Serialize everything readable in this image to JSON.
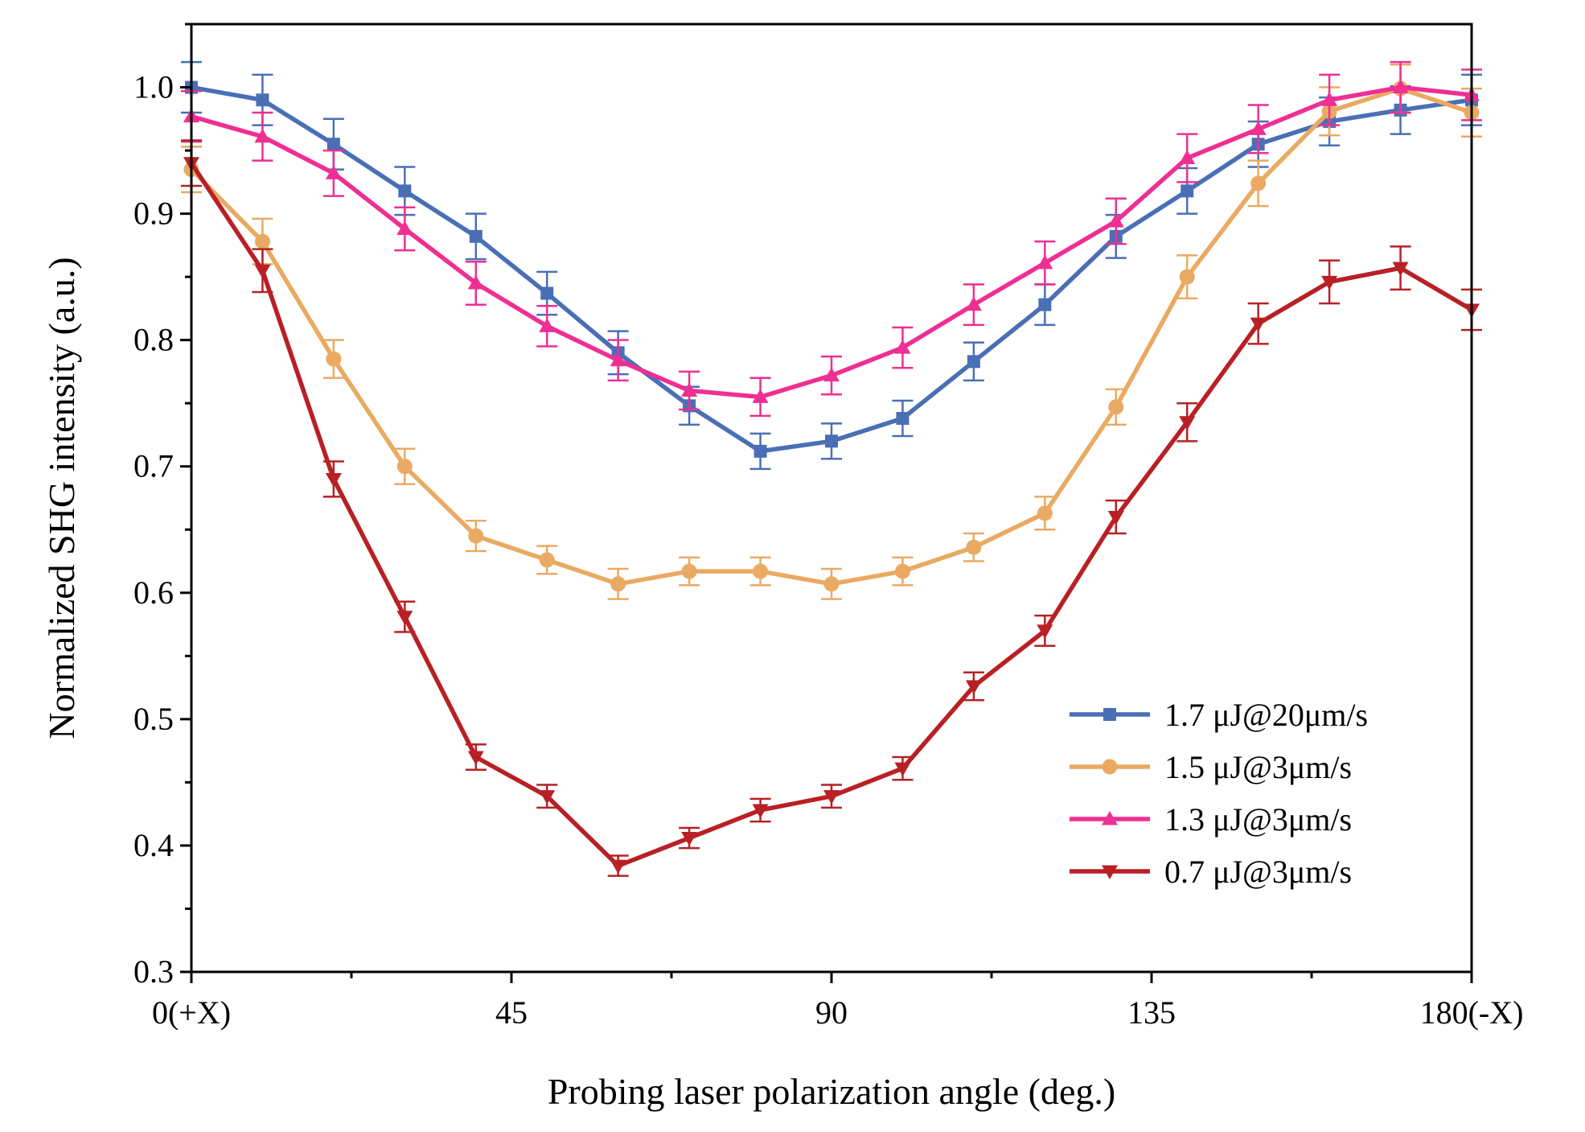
{
  "chart_data": {
    "type": "line",
    "title": "",
    "xlabel": "Probing laser polarization angle (deg.)",
    "ylabel": "Normalized SHG intensity (a.u.)",
    "xlim": [
      0,
      180
    ],
    "ylim": [
      0.3,
      1.05
    ],
    "x_ticks": [
      0,
      45,
      90,
      135,
      180
    ],
    "x_tick_labels": [
      "0(+X)",
      "45",
      "90",
      "135",
      "180(-X)"
    ],
    "y_ticks": [
      0.3,
      0.4,
      0.5,
      0.6,
      0.7,
      0.8,
      0.9,
      1.0
    ],
    "y_tick_labels": [
      "0.3",
      "0.4",
      "0.5",
      "0.6",
      "0.7",
      "0.8",
      "0.9",
      "1.0"
    ],
    "grid": false,
    "legend_position": "lower-right",
    "x": [
      0,
      10,
      20,
      30,
      40,
      50,
      60,
      70,
      80,
      90,
      100,
      110,
      120,
      130,
      140,
      150,
      160,
      170,
      180
    ],
    "series": [
      {
        "name": "1.7 μJ@20μm/s",
        "color": "#4a6fb5",
        "marker": "square",
        "values": [
          1.0,
          0.99,
          0.955,
          0.918,
          0.882,
          0.837,
          0.79,
          0.748,
          0.712,
          0.72,
          0.738,
          0.783,
          0.828,
          0.882,
          0.918,
          0.955,
          0.973,
          0.982,
          0.99
        ],
        "errors": [
          0.02,
          0.02,
          0.02,
          0.019,
          0.018,
          0.017,
          0.017,
          0.015,
          0.014,
          0.014,
          0.014,
          0.015,
          0.016,
          0.017,
          0.018,
          0.018,
          0.019,
          0.019,
          0.02
        ]
      },
      {
        "name": "1.5 μJ@3μm/s",
        "color": "#eaaa63",
        "marker": "circle",
        "values": [
          0.935,
          0.878,
          0.785,
          0.7,
          0.645,
          0.626,
          0.607,
          0.617,
          0.617,
          0.607,
          0.617,
          0.636,
          0.663,
          0.747,
          0.85,
          0.924,
          0.981,
          0.999,
          0.98
        ],
        "errors": [
          0.018,
          0.018,
          0.015,
          0.014,
          0.012,
          0.011,
          0.012,
          0.011,
          0.011,
          0.012,
          0.011,
          0.011,
          0.013,
          0.014,
          0.017,
          0.018,
          0.019,
          0.019,
          0.019
        ]
      },
      {
        "name": "1.3 μJ@3μm/s",
        "color": "#ee2f93",
        "marker": "triangle-up",
        "values": [
          0.977,
          0.961,
          0.932,
          0.888,
          0.845,
          0.811,
          0.784,
          0.76,
          0.755,
          0.772,
          0.794,
          0.828,
          0.861,
          0.894,
          0.944,
          0.967,
          0.99,
          1.0,
          0.994
        ],
        "errors": [
          0.02,
          0.019,
          0.018,
          0.017,
          0.017,
          0.016,
          0.016,
          0.015,
          0.015,
          0.015,
          0.016,
          0.016,
          0.017,
          0.018,
          0.019,
          0.019,
          0.02,
          0.02,
          0.02
        ]
      },
      {
        "name": "0.7 μJ@3μm/s",
        "color": "#b82025",
        "marker": "triangle-down",
        "values": [
          0.94,
          0.855,
          0.69,
          0.581,
          0.47,
          0.439,
          0.384,
          0.406,
          0.428,
          0.439,
          0.461,
          0.526,
          0.57,
          0.66,
          0.735,
          0.813,
          0.846,
          0.857,
          0.824
        ],
        "errors": [
          0.018,
          0.017,
          0.014,
          0.012,
          0.01,
          0.009,
          0.008,
          0.008,
          0.009,
          0.009,
          0.009,
          0.011,
          0.012,
          0.013,
          0.015,
          0.016,
          0.017,
          0.017,
          0.016
        ]
      }
    ]
  }
}
